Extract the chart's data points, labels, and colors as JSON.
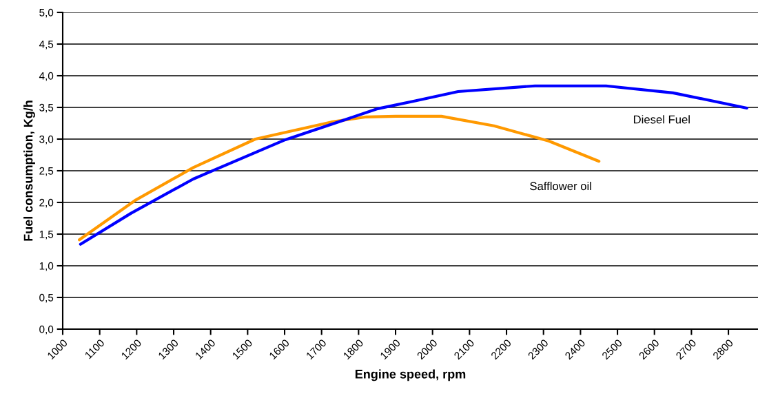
{
  "chart_data": {
    "type": "line",
    "xlabel": "Engine speed, rpm",
    "ylabel": "Fuel consumption, Kg/h",
    "xlim": [
      1000,
      2880
    ],
    "xticks": [
      1000,
      1100,
      1200,
      1300,
      1400,
      1500,
      1600,
      1700,
      1800,
      1900,
      2000,
      2100,
      2200,
      2300,
      2400,
      2500,
      2600,
      2700,
      2800
    ],
    "ylim": [
      0,
      5
    ],
    "yticks": [
      {
        "value": 0,
        "label": "0,0"
      },
      {
        "value": 0.5,
        "label": "0,5"
      },
      {
        "value": 1,
        "label": "1,0"
      },
      {
        "value": 1.5,
        "label": "1,5"
      },
      {
        "value": 2,
        "label": "2,0"
      },
      {
        "value": 2.5,
        "label": "2,5"
      },
      {
        "value": 3,
        "label": "3,0"
      },
      {
        "value": 3.5,
        "label": "3,5"
      },
      {
        "value": 4,
        "label": "4,0"
      },
      {
        "value": 4.5,
        "label": "4,5"
      },
      {
        "value": 5,
        "label": "5,0"
      }
    ],
    "grid": "y",
    "legend": false,
    "marker": "none",
    "line_style": "solid",
    "series": [
      {
        "name": "Safflower oil",
        "color": "#ff9900",
        "x": [
          1045,
          1198,
          1353,
          1521,
          1727,
          1821,
          1900,
          2024,
          2166,
          2314,
          2450
        ],
        "values": [
          1.41,
          2.04,
          2.55,
          3.0,
          3.27,
          3.35,
          3.36,
          3.36,
          3.21,
          2.97,
          2.65
        ]
      },
      {
        "name": "Diesel Fuel",
        "color": "#0000ff",
        "x": [
          1048,
          1185,
          1353,
          1602,
          1852,
          1951,
          2069,
          2277,
          2469,
          2650,
          2850
        ],
        "values": [
          1.34,
          1.83,
          2.37,
          2.99,
          3.48,
          3.6,
          3.75,
          3.84,
          3.84,
          3.73,
          3.49
        ]
      }
    ]
  }
}
